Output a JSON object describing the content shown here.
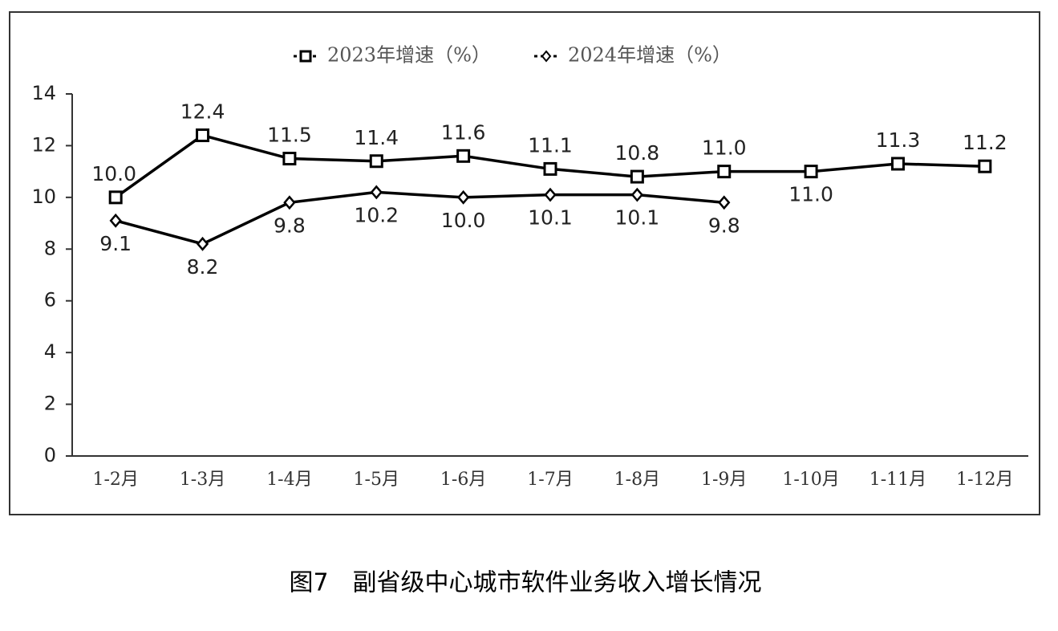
{
  "chart_data": {
    "type": "line",
    "caption": "图7　副省级中心城市软件业务收入增长情况",
    "categories": [
      "1-2月",
      "1-3月",
      "1-4月",
      "1-5月",
      "1-6月",
      "1-7月",
      "1-8月",
      "1-9月",
      "1-10月",
      "1-11月",
      "1-12月"
    ],
    "series": [
      {
        "name": "2023年增速（%）",
        "color": "#000000",
        "marker": "square",
        "values": [
          10.0,
          12.4,
          11.5,
          11.4,
          11.6,
          11.1,
          10.8,
          11.0,
          11.0,
          11.3,
          11.2
        ],
        "value_labels": [
          "10.0",
          "12.4",
          "11.5",
          "11.4",
          "11.6",
          "11.1",
          "10.8",
          "11.0",
          "11.0",
          "11.3",
          "11.2"
        ]
      },
      {
        "name": "2024年增速（%）",
        "color": "#000000",
        "marker": "diamond",
        "values": [
          9.1,
          8.2,
          9.8,
          10.2,
          10.0,
          10.1,
          10.1,
          9.8,
          null,
          null,
          null
        ],
        "value_labels": [
          "9.1",
          "8.2",
          "9.8",
          "10.2",
          "10.0",
          "10.1",
          "10.1",
          "9.8",
          null,
          null,
          null
        ]
      }
    ],
    "ylim": [
      0,
      14
    ],
    "yticks": [
      0,
      2,
      4,
      6,
      8,
      10,
      12,
      14
    ],
    "grid": false,
    "legend": "top"
  }
}
